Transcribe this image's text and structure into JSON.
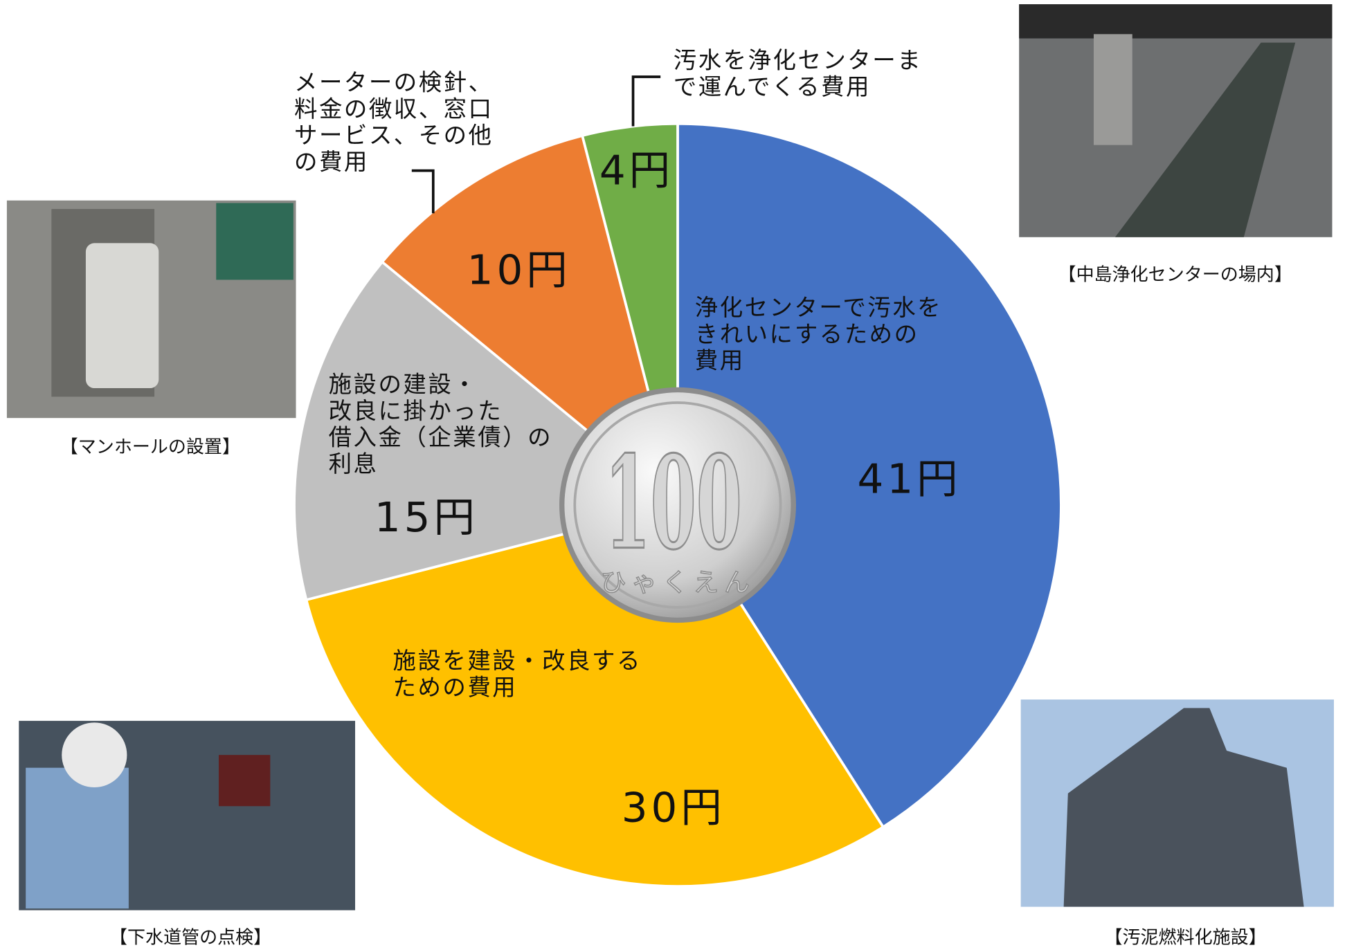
{
  "chart_data": {
    "type": "pie",
    "categories": [
      "浄化センターで汚水を\nきれいにするための\n費用",
      "施設を建設・改良する\nための費用",
      "施設の建設・\n改良に掛かった\n借入金（企業債）の\n利息",
      "メーターの検針、\n料金の徴収、窓口\nサービス、その他\nの費用",
      "汚水を浄化センターま\nで運んでくる費用"
    ],
    "values": [
      41,
      30,
      15,
      10,
      4
    ],
    "value_labels": [
      "41円",
      "30円",
      "15円",
      "10円",
      "4円"
    ],
    "colors": [
      "#4472c4",
      "#ffc000",
      "#c0c0c0",
      "#ed7d31",
      "#70ad47"
    ]
  },
  "coin": {
    "label": "100",
    "sub": "ひゃくえん"
  },
  "photos": [
    {
      "caption": "【マンホールの設置】"
    },
    {
      "caption": "【中島浄化センターの場内】"
    },
    {
      "caption": "【下水道管の点検】"
    },
    {
      "caption": "【汚泥燃料化施設】"
    }
  ]
}
